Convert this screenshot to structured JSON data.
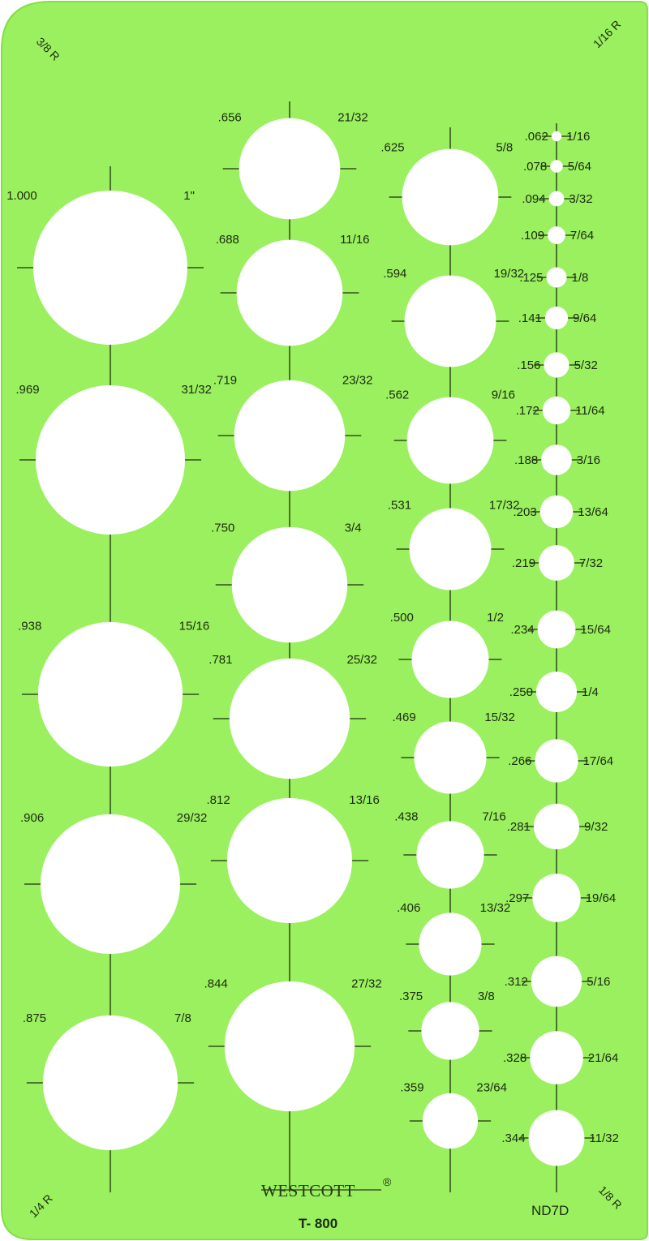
{
  "template": {
    "brand": "WESTCOTT",
    "brand_mark": "®",
    "model": "T- 800",
    "code": "ND7D",
    "colors": {
      "plastic": "#9af05e",
      "plastic_edge": "#86dc4a",
      "ink": "#1c2a12"
    },
    "corner_radii": {
      "top_left": "3/8 R",
      "top_right": "1/16 R",
      "bottom_left": "1/4 R",
      "bottom_right": "1/8 R"
    },
    "columns": [
      {
        "holes": [
          {
            "decimal": "1.000",
            "fraction": "1\""
          },
          {
            "decimal": ".969",
            "fraction": "31/32"
          },
          {
            "decimal": ".938",
            "fraction": "15/16"
          },
          {
            "decimal": ".906",
            "fraction": "29/32"
          },
          {
            "decimal": ".875",
            "fraction": "7/8"
          }
        ]
      },
      {
        "holes": [
          {
            "decimal": ".656",
            "fraction": "21/32"
          },
          {
            "decimal": ".688",
            "fraction": "11/16"
          },
          {
            "decimal": ".719",
            "fraction": "23/32"
          },
          {
            "decimal": ".750",
            "fraction": "3/4"
          },
          {
            "decimal": ".781",
            "fraction": "25/32"
          },
          {
            "decimal": ".812",
            "fraction": "13/16"
          },
          {
            "decimal": ".844",
            "fraction": "27/32"
          }
        ]
      },
      {
        "holes": [
          {
            "decimal": ".625",
            "fraction": "5/8"
          },
          {
            "decimal": ".594",
            "fraction": "19/32"
          },
          {
            "decimal": ".562",
            "fraction": "9/16"
          },
          {
            "decimal": ".531",
            "fraction": "17/32"
          },
          {
            "decimal": ".500",
            "fraction": "1/2"
          },
          {
            "decimal": ".469",
            "fraction": "15/32"
          },
          {
            "decimal": ".438",
            "fraction": "7/16"
          },
          {
            "decimal": ".406",
            "fraction": "13/32"
          },
          {
            "decimal": ".375",
            "fraction": "3/8"
          },
          {
            "decimal": ".359",
            "fraction": "23/64"
          }
        ]
      },
      {
        "holes": [
          {
            "decimal": ".062",
            "fraction": "1/16"
          },
          {
            "decimal": ".078",
            "fraction": "5/64"
          },
          {
            "decimal": ".094",
            "fraction": "3/32"
          },
          {
            "decimal": ".109",
            "fraction": "7/64"
          },
          {
            "decimal": ".125",
            "fraction": "1/8"
          },
          {
            "decimal": ".141",
            "fraction": "9/64"
          },
          {
            "decimal": ".156",
            "fraction": "5/32"
          },
          {
            "decimal": ".172",
            "fraction": "11/64"
          },
          {
            "decimal": ".188",
            "fraction": "3/16"
          },
          {
            "decimal": ".203",
            "fraction": "13/64"
          },
          {
            "decimal": ".219",
            "fraction": "7/32"
          },
          {
            "decimal": ".234",
            "fraction": "15/64"
          },
          {
            "decimal": ".250",
            "fraction": "1/4"
          },
          {
            "decimal": ".266",
            "fraction": "17/64"
          },
          {
            "decimal": ".281",
            "fraction": "9/32"
          },
          {
            "decimal": ".297",
            "fraction": "19/64"
          },
          {
            "decimal": ".312",
            "fraction": "5/16"
          },
          {
            "decimal": ".328",
            "fraction": "21/64"
          },
          {
            "decimal": ".344",
            "fraction": "11/32"
          }
        ]
      }
    ]
  }
}
